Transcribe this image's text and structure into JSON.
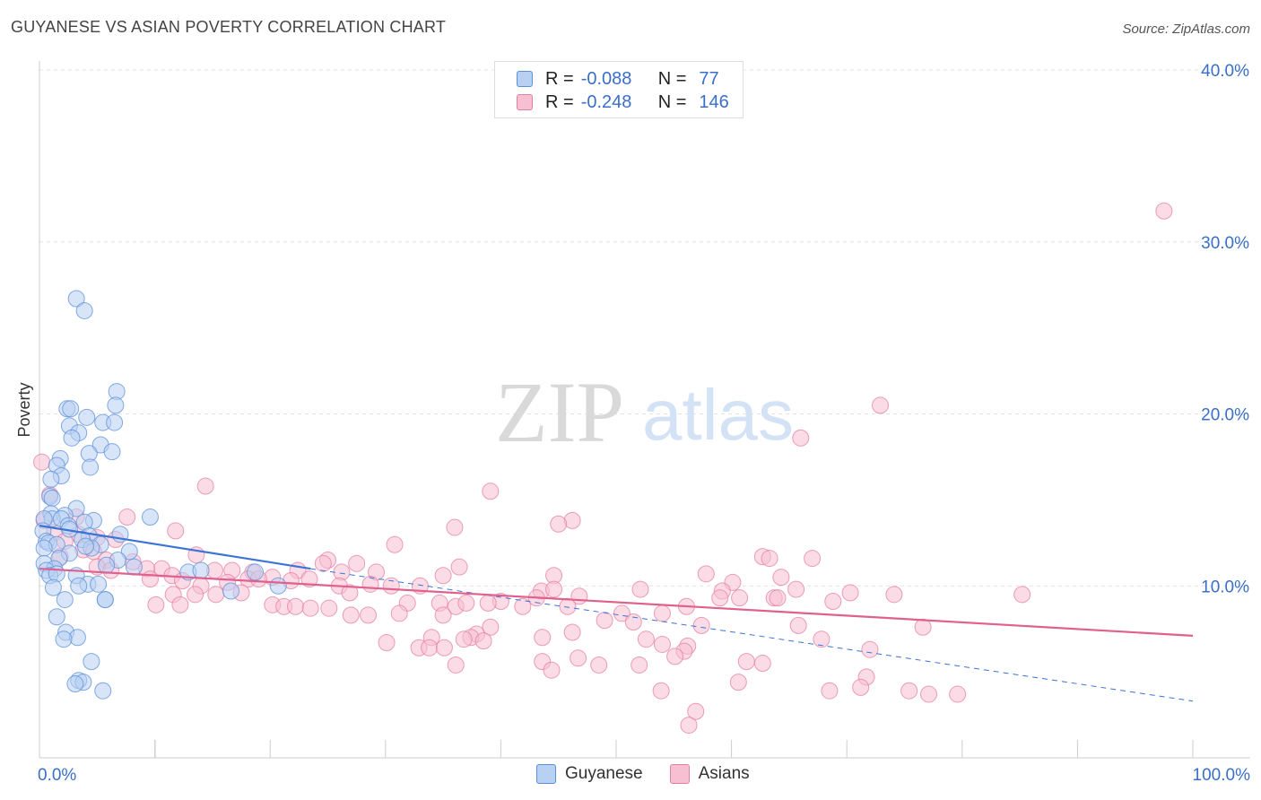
{
  "header": {
    "title": "GUYANESE VS ASIAN POVERTY CORRELATION CHART",
    "source": "Source: ZipAtlas.com"
  },
  "watermark": {
    "part1": "ZIP",
    "part2": "atlas"
  },
  "legend": {
    "rows": [
      {
        "r_label": "R =",
        "r_value": "-0.088",
        "n_label": "N =",
        "n_value": "77",
        "fill": "#b8d0f2",
        "stroke": "#5b8fd8"
      },
      {
        "r_label": "R =",
        "r_value": "-0.248",
        "n_label": "N =",
        "n_value": "146",
        "fill": "#f7c0d2",
        "stroke": "#e67ea3"
      }
    ]
  },
  "bottom_legend": {
    "items": [
      {
        "label": "Guyanese",
        "fill": "#b8d0f2",
        "stroke": "#5b8fd8"
      },
      {
        "label": "Asians",
        "fill": "#f7c0d2",
        "stroke": "#e67ea3"
      }
    ]
  },
  "chart_data": {
    "type": "scatter",
    "title": "GUYANESE VS ASIAN POVERTY CORRELATION CHART",
    "xlabel": "",
    "ylabel": "Poverty",
    "xlim": [
      0,
      100
    ],
    "ylim": [
      0,
      40
    ],
    "x_tick_labels": [
      "0.0%",
      "100.0%"
    ],
    "y_ticks": [
      10,
      20,
      30,
      40
    ],
    "y_tick_labels": [
      "10.0%",
      "20.0%",
      "30.0%",
      "40.0%"
    ],
    "grid": true,
    "legend_position": "top-center",
    "colors": {
      "guyanese": "#5b8fd8",
      "guyanese_fill": "#b8d0f2",
      "asians": "#e67ea3",
      "asians_fill": "#f7c0d2",
      "axis_text": "#3a6fc8"
    },
    "series": [
      {
        "name": "Guyanese",
        "r": -0.088,
        "n": 77,
        "trend": {
          "x": [
            0,
            23.5
          ],
          "y": [
            13.5,
            11.0
          ],
          "dashed_x": [
            23.5,
            100
          ],
          "dashed_y": [
            11.0,
            3.3
          ]
        },
        "points": [
          [
            3.2,
            26.7
          ],
          [
            3.9,
            26.0
          ],
          [
            6.7,
            21.3
          ],
          [
            6.6,
            20.5
          ],
          [
            2.4,
            20.3
          ],
          [
            2.7,
            20.3
          ],
          [
            4.1,
            19.8
          ],
          [
            5.5,
            19.5
          ],
          [
            6.5,
            19.5
          ],
          [
            2.6,
            19.3
          ],
          [
            3.4,
            18.9
          ],
          [
            2.8,
            18.6
          ],
          [
            5.3,
            18.2
          ],
          [
            6.3,
            17.8
          ],
          [
            4.3,
            17.7
          ],
          [
            1.8,
            17.4
          ],
          [
            1.5,
            17.0
          ],
          [
            4.4,
            16.9
          ],
          [
            1.9,
            16.4
          ],
          [
            1.0,
            16.2
          ],
          [
            0.9,
            15.2
          ],
          [
            1.1,
            15.1
          ],
          [
            3.2,
            14.5
          ],
          [
            1.0,
            14.2
          ],
          [
            2.2,
            14.1
          ],
          [
            1.1,
            13.9
          ],
          [
            1.9,
            13.9
          ],
          [
            0.4,
            13.9
          ],
          [
            9.6,
            14.0
          ],
          [
            4.7,
            13.8
          ],
          [
            3.9,
            13.7
          ],
          [
            2.5,
            13.5
          ],
          [
            0.3,
            13.2
          ],
          [
            2.6,
            13.3
          ],
          [
            7.0,
            13.0
          ],
          [
            4.3,
            12.9
          ],
          [
            3.7,
            12.7
          ],
          [
            0.6,
            12.6
          ],
          [
            0.8,
            12.5
          ],
          [
            1.5,
            12.4
          ],
          [
            5.3,
            12.4
          ],
          [
            4.5,
            12.2
          ],
          [
            4.0,
            12.3
          ],
          [
            0.4,
            12.2
          ],
          [
            7.8,
            12.0
          ],
          [
            2.6,
            11.9
          ],
          [
            1.7,
            11.6
          ],
          [
            0.4,
            11.3
          ],
          [
            6.8,
            11.5
          ],
          [
            5.8,
            11.2
          ],
          [
            1.3,
            11.0
          ],
          [
            0.6,
            10.9
          ],
          [
            8.2,
            11.1
          ],
          [
            0.9,
            10.6
          ],
          [
            12.9,
            10.8
          ],
          [
            14.0,
            10.9
          ],
          [
            18.7,
            10.8
          ],
          [
            1.5,
            10.7
          ],
          [
            3.2,
            10.6
          ],
          [
            4.2,
            10.1
          ],
          [
            3.4,
            10.0
          ],
          [
            5.1,
            10.1
          ],
          [
            1.2,
            9.9
          ],
          [
            20.7,
            10.0
          ],
          [
            16.6,
            9.7
          ],
          [
            5.7,
            9.2
          ],
          [
            2.2,
            9.2
          ],
          [
            5.7,
            9.2
          ],
          [
            1.5,
            8.2
          ],
          [
            2.3,
            7.3
          ],
          [
            3.3,
            7.0
          ],
          [
            2.1,
            6.9
          ],
          [
            4.5,
            5.6
          ],
          [
            3.4,
            4.5
          ],
          [
            3.8,
            4.4
          ],
          [
            3.1,
            4.3
          ],
          [
            5.5,
            3.9
          ]
        ]
      },
      {
        "name": "Asians",
        "r": -0.248,
        "n": 146,
        "trend": {
          "x": [
            0,
            100
          ],
          "y": [
            11.0,
            7.1
          ]
        },
        "points": [
          [
            0.2,
            17.2
          ],
          [
            97.5,
            31.8
          ],
          [
            72.9,
            20.5
          ],
          [
            66.0,
            18.6
          ],
          [
            14.4,
            15.8
          ],
          [
            39.1,
            15.5
          ],
          [
            0.9,
            15.3
          ],
          [
            7.6,
            14.0
          ],
          [
            3.2,
            14.0
          ],
          [
            0.4,
            13.8
          ],
          [
            46.2,
            13.8
          ],
          [
            45.0,
            13.6
          ],
          [
            36.0,
            13.4
          ],
          [
            11.8,
            13.2
          ],
          [
            1.3,
            13.1
          ],
          [
            3.4,
            13.0
          ],
          [
            5.0,
            12.8
          ],
          [
            2.2,
            12.6
          ],
          [
            6.6,
            12.7
          ],
          [
            30.8,
            12.4
          ],
          [
            3.8,
            12.1
          ],
          [
            4.7,
            12.0
          ],
          [
            13.6,
            11.8
          ],
          [
            1.8,
            11.7
          ],
          [
            25.0,
            11.5
          ],
          [
            27.5,
            11.3
          ],
          [
            8.1,
            11.4
          ],
          [
            5.8,
            11.5
          ],
          [
            24.6,
            11.3
          ],
          [
            5.0,
            11.1
          ],
          [
            62.7,
            11.7
          ],
          [
            63.3,
            11.6
          ],
          [
            67.0,
            11.6
          ],
          [
            36.4,
            11.1
          ],
          [
            10.6,
            11.0
          ],
          [
            9.3,
            11.0
          ],
          [
            6.2,
            10.9
          ],
          [
            22.4,
            10.9
          ],
          [
            15.2,
            10.9
          ],
          [
            16.7,
            10.9
          ],
          [
            18.5,
            10.8
          ],
          [
            26.2,
            10.8
          ],
          [
            29.2,
            10.8
          ],
          [
            35.0,
            10.6
          ],
          [
            44.6,
            10.6
          ],
          [
            20.2,
            10.5
          ],
          [
            11.5,
            10.6
          ],
          [
            57.8,
            10.7
          ],
          [
            64.3,
            10.5
          ],
          [
            9.6,
            10.4
          ],
          [
            12.4,
            10.3
          ],
          [
            16.3,
            10.2
          ],
          [
            18.1,
            10.4
          ],
          [
            19.0,
            10.4
          ],
          [
            21.8,
            10.3
          ],
          [
            23.4,
            10.4
          ],
          [
            28.7,
            10.1
          ],
          [
            14.0,
            10.0
          ],
          [
            60.1,
            10.2
          ],
          [
            26.0,
            10.0
          ],
          [
            30.5,
            10.0
          ],
          [
            33.0,
            10.0
          ],
          [
            43.5,
            9.7
          ],
          [
            44.6,
            9.8
          ],
          [
            52.1,
            9.8
          ],
          [
            59.2,
            9.7
          ],
          [
            65.6,
            9.8
          ],
          [
            70.3,
            9.6
          ],
          [
            11.6,
            9.5
          ],
          [
            13.5,
            9.5
          ],
          [
            15.3,
            9.5
          ],
          [
            17.5,
            9.6
          ],
          [
            26.9,
            9.6
          ],
          [
            59.0,
            9.3
          ],
          [
            60.7,
            9.3
          ],
          [
            63.7,
            9.3
          ],
          [
            68.8,
            9.1
          ],
          [
            46.8,
            9.4
          ],
          [
            43.1,
            9.3
          ],
          [
            40.0,
            9.1
          ],
          [
            31.9,
            9.0
          ],
          [
            34.7,
            9.0
          ],
          [
            36.1,
            8.8
          ],
          [
            41.9,
            8.8
          ],
          [
            37.0,
            9.0
          ],
          [
            38.9,
            9.0
          ],
          [
            45.8,
            8.8
          ],
          [
            56.1,
            8.8
          ],
          [
            64.0,
            9.3
          ],
          [
            74.1,
            9.5
          ],
          [
            85.2,
            9.5
          ],
          [
            10.1,
            8.9
          ],
          [
            12.2,
            8.9
          ],
          [
            20.2,
            8.9
          ],
          [
            21.2,
            8.8
          ],
          [
            22.2,
            8.8
          ],
          [
            23.5,
            8.7
          ],
          [
            25.1,
            8.7
          ],
          [
            27.0,
            8.3
          ],
          [
            28.5,
            8.3
          ],
          [
            31.2,
            8.4
          ],
          [
            35.0,
            8.3
          ],
          [
            50.5,
            8.4
          ],
          [
            54.0,
            8.4
          ],
          [
            49.0,
            8.0
          ],
          [
            51.5,
            7.9
          ],
          [
            57.4,
            7.7
          ],
          [
            65.8,
            7.7
          ],
          [
            76.6,
            7.6
          ],
          [
            46.2,
            7.3
          ],
          [
            39.1,
            7.6
          ],
          [
            43.6,
            7.0
          ],
          [
            37.9,
            7.2
          ],
          [
            34.0,
            7.0
          ],
          [
            37.4,
            7.0
          ],
          [
            36.8,
            6.9
          ],
          [
            38.5,
            6.8
          ],
          [
            30.1,
            6.7
          ],
          [
            52.6,
            6.9
          ],
          [
            32.9,
            6.4
          ],
          [
            33.8,
            6.4
          ],
          [
            35.1,
            6.4
          ],
          [
            54.0,
            6.6
          ],
          [
            56.2,
            6.5
          ],
          [
            67.8,
            6.9
          ],
          [
            72.0,
            6.3
          ],
          [
            55.9,
            6.2
          ],
          [
            55.1,
            5.9
          ],
          [
            46.7,
            5.8
          ],
          [
            52.0,
            5.4
          ],
          [
            43.6,
            5.6
          ],
          [
            48.5,
            5.4
          ],
          [
            61.3,
            5.6
          ],
          [
            62.7,
            5.5
          ],
          [
            44.4,
            5.1
          ],
          [
            36.1,
            5.4
          ],
          [
            71.7,
            4.7
          ],
          [
            60.6,
            4.4
          ],
          [
            71.2,
            4.1
          ],
          [
            68.5,
            3.9
          ],
          [
            75.4,
            3.9
          ],
          [
            77.1,
            3.7
          ],
          [
            79.6,
            3.7
          ],
          [
            53.9,
            3.9
          ],
          [
            56.9,
            2.7
          ],
          [
            56.3,
            1.9
          ]
        ]
      }
    ]
  }
}
